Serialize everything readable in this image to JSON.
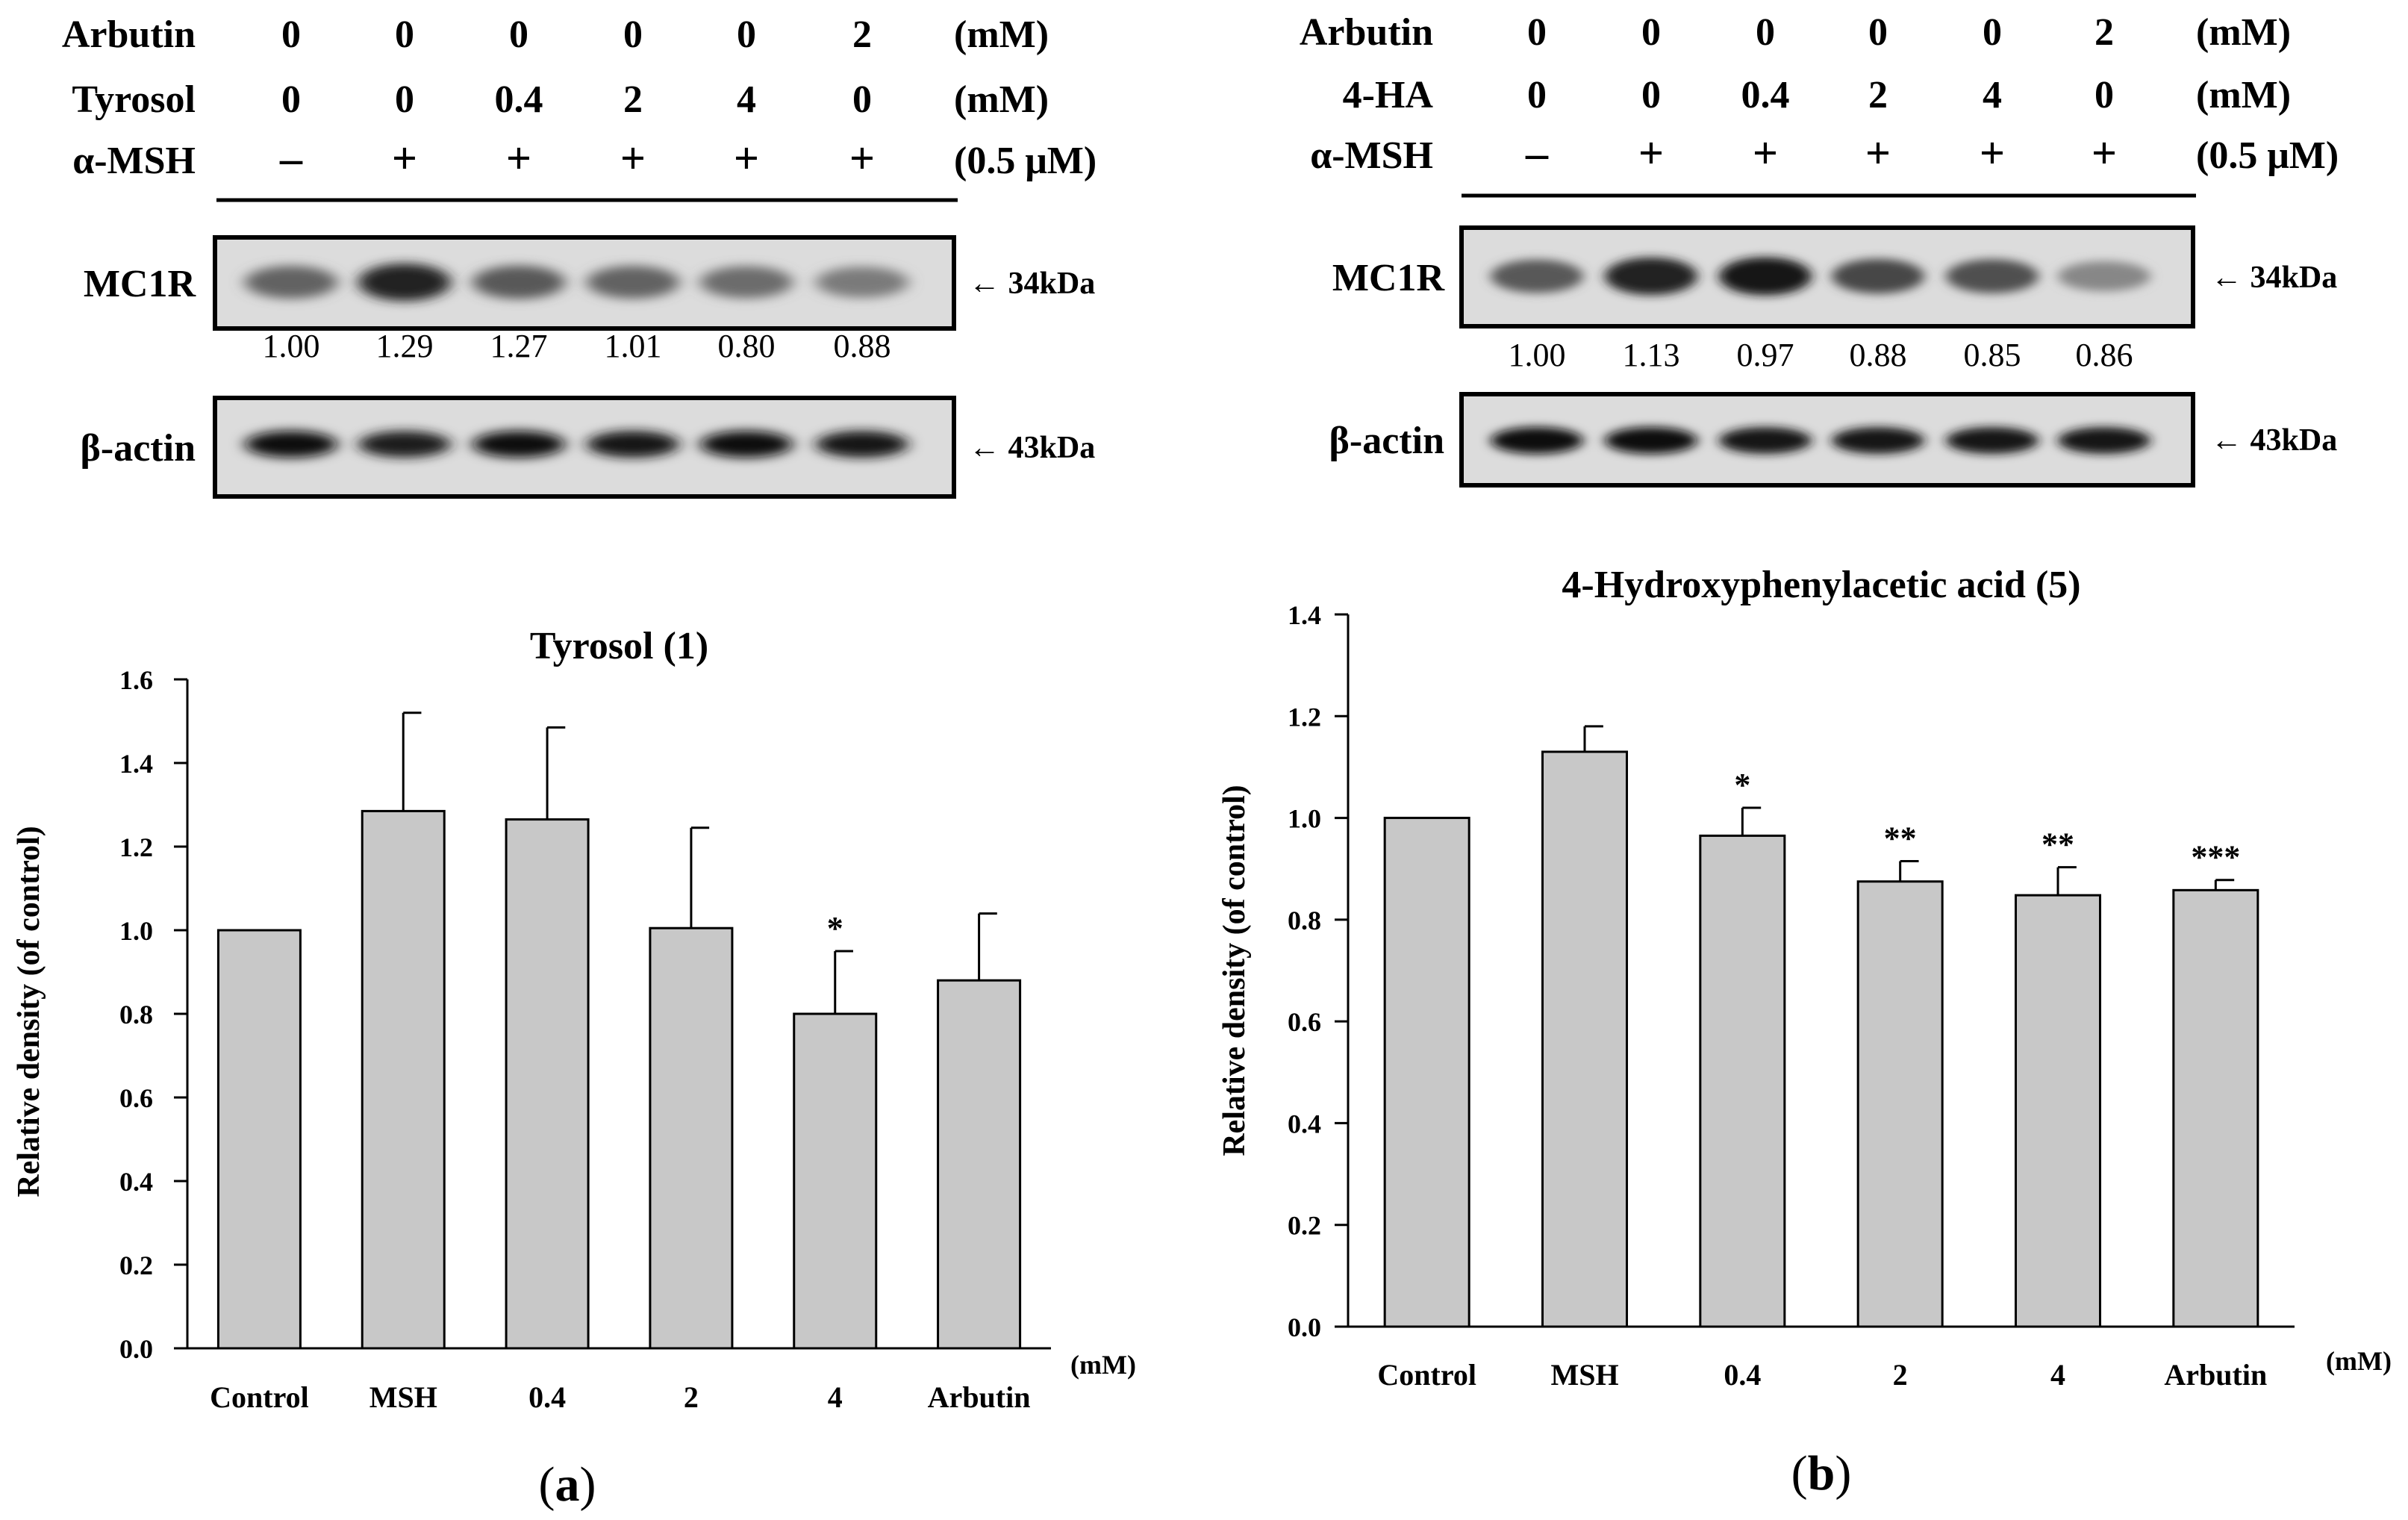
{
  "panels": [
    {
      "id": "a",
      "panel_label": "a",
      "treatment_rows": [
        {
          "label": "Arbutin",
          "values": [
            "0",
            "0",
            "0",
            "0",
            "0",
            "2"
          ],
          "unit": "(mM)"
        },
        {
          "label": "Tyrosol",
          "values": [
            "0",
            "0",
            "0.4",
            "2",
            "4",
            "0"
          ],
          "unit": "(mM)"
        },
        {
          "label": "α-MSH",
          "values": [
            "–",
            "+",
            "+",
            "+",
            "+",
            "+"
          ],
          "unit": "(0.5 μM)"
        }
      ],
      "blots": [
        {
          "protein": "MC1R",
          "marker": "← 34kDa",
          "band_intensity": [
            0.55,
            0.9,
            0.6,
            0.55,
            0.5,
            0.42
          ]
        },
        {
          "protein": "β-actin",
          "marker": "← 43kDa",
          "band_intensity": [
            1.0,
            0.92,
            1.0,
            0.95,
            1.0,
            0.95
          ]
        }
      ],
      "densitometry": [
        "1.00",
        "1.29",
        "1.27",
        "1.01",
        "0.80",
        "0.88"
      ]
    },
    {
      "id": "b",
      "panel_label": "b",
      "treatment_rows": [
        {
          "label": "Arbutin",
          "values": [
            "0",
            "0",
            "0",
            "0",
            "0",
            "2"
          ],
          "unit": "(mM)"
        },
        {
          "label": "4-HA",
          "values": [
            "0",
            "0",
            "0.4",
            "2",
            "4",
            "0"
          ],
          "unit": "(mM)"
        },
        {
          "label": "α-MSH",
          "values": [
            "–",
            "+",
            "+",
            "+",
            "+",
            "+"
          ],
          "unit": "(0.5 μM)"
        }
      ],
      "blots": [
        {
          "protein": "MC1R",
          "marker": "← 34kDa",
          "band_intensity": [
            0.6,
            0.9,
            0.95,
            0.7,
            0.65,
            0.35
          ]
        },
        {
          "protein": "β-actin",
          "marker": "← 43kDa",
          "band_intensity": [
            1.0,
            1.0,
            0.95,
            0.95,
            0.95,
            0.95
          ]
        }
      ],
      "densitometry": [
        "1.00",
        "1.13",
        "0.97",
        "0.88",
        "0.85",
        "0.86"
      ]
    }
  ],
  "chart_data": [
    {
      "type": "bar",
      "title": "Tyrosol (1)",
      "ylabel": "Relative density (of control)",
      "xunit": "(mM)",
      "categories": [
        "Control",
        "MSH",
        "0.4",
        "2",
        "4",
        "Arbutin"
      ],
      "values": [
        1.0,
        1.285,
        1.265,
        1.005,
        0.8,
        0.88
      ],
      "error": [
        0,
        0.235,
        0.22,
        0.24,
        0.15,
        0.16
      ],
      "significance": [
        "",
        "",
        "",
        "",
        "*",
        ""
      ],
      "ylim": [
        0,
        1.6
      ],
      "yticks": [
        "0.0",
        "0.2",
        "0.4",
        "0.6",
        "0.8",
        "1.0",
        "1.2",
        "1.4",
        "1.6"
      ],
      "bar_color": "#c8c8c8",
      "grid": false
    },
    {
      "type": "bar",
      "title": "4-Hydroxyphenylacetic acid (5)",
      "ylabel": "Relative density (of control)",
      "xunit": "(mM)",
      "categories": [
        "Control",
        "MSH",
        "0.4",
        "2",
        "4",
        "Arbutin"
      ],
      "values": [
        1.0,
        1.13,
        0.965,
        0.875,
        0.848,
        0.858
      ],
      "error": [
        0,
        0.05,
        0.055,
        0.04,
        0.055,
        0.02
      ],
      "significance": [
        "",
        "",
        "*",
        "**",
        "**",
        "***"
      ],
      "ylim": [
        0,
        1.4
      ],
      "yticks": [
        "0.0",
        "0.2",
        "0.4",
        "0.6",
        "0.8",
        "1.0",
        "1.2",
        "1.4"
      ],
      "bar_color": "#c8c8c8",
      "grid": false
    }
  ]
}
